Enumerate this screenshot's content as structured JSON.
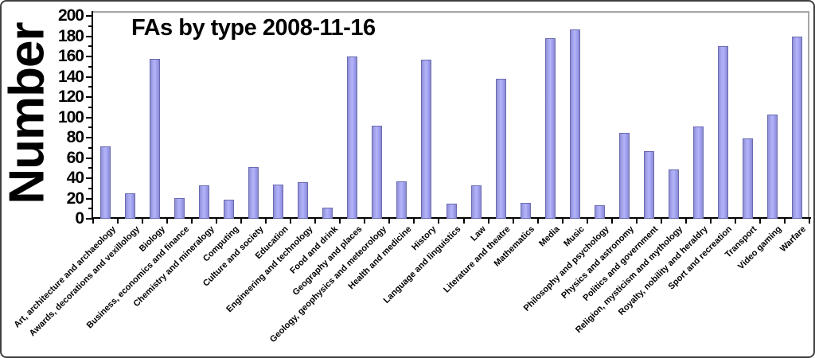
{
  "chart_data": {
    "type": "bar",
    "title": "FAs by type 2008-11-16",
    "ylabel": "Number",
    "xlabel": "",
    "ylim": [
      0,
      200
    ],
    "ytick_step": 20,
    "ytick_minor_step": 10,
    "grid": false,
    "legend_position": "none",
    "bar_color": "#9999ee",
    "bar_border_color": "#6b6bb0",
    "axis_color": "#000000",
    "frame_color": "#a6a6a6",
    "categories": [
      "Art, architecture and archaeology",
      "Awards, decorations and vexillology",
      "Biology",
      "Business, economics and finance",
      "Chemistry and mineralogy",
      "Computing",
      "Culture and society",
      "Education",
      "Engineering and technology",
      "Food and drink",
      "Geography and places",
      "Geology, geophysics and meteorology",
      "Health and medicine",
      "History",
      "Language and linguistics",
      "Law",
      "Literature and theatre",
      "Mathematics",
      "Media",
      "Music",
      "Philosophy and psychology",
      "Physics and astronomy",
      "Politics and government",
      "Religion, mysticism and mythology",
      "Royalty, nobility and heraldry",
      "Sport and recreation",
      "Transport",
      "Video gaming",
      "Warfare"
    ],
    "values": [
      71,
      25,
      158,
      20,
      33,
      19,
      51,
      34,
      36,
      11,
      160,
      92,
      37,
      157,
      15,
      33,
      138,
      16,
      178,
      187,
      13,
      85,
      67,
      49,
      91,
      170,
      79,
      103,
      180
    ]
  }
}
